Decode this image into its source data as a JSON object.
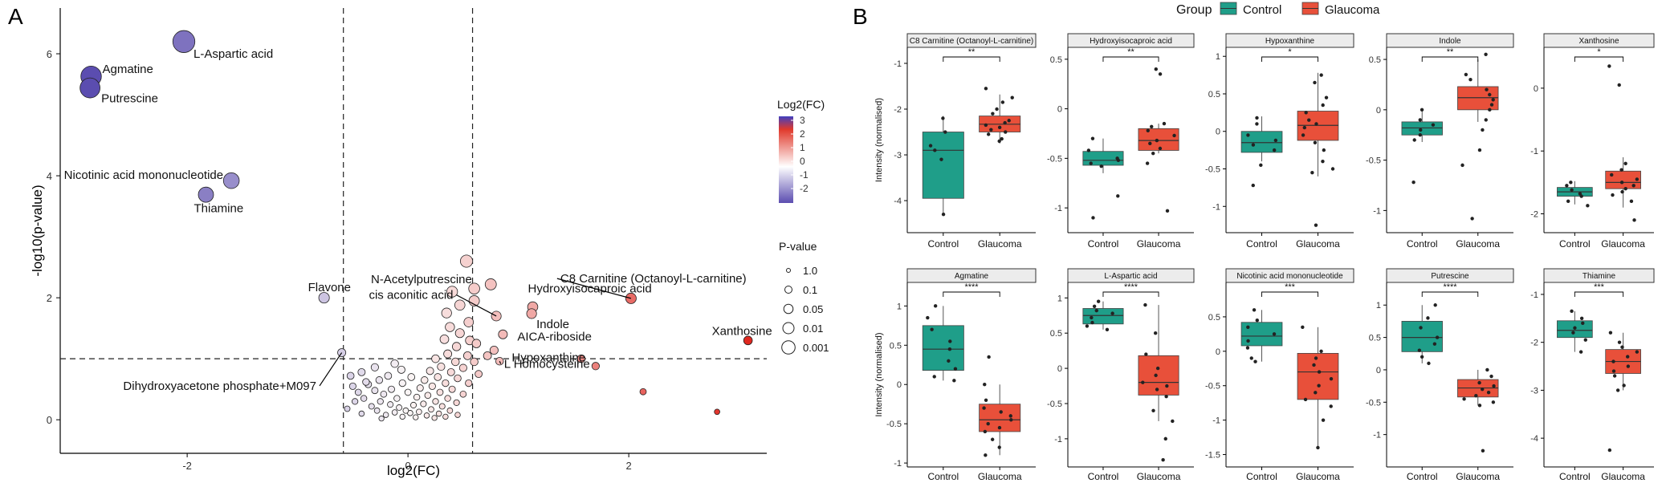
{
  "panel_labels": {
    "a": "A",
    "b": "B"
  },
  "volcano": {
    "chart_data": {
      "type": "scatter",
      "xlabel": "log2(FC)",
      "ylabel": "-log10(p-value)",
      "xlim": [
        -3.15,
        3.25
      ],
      "ylim": [
        -0.55,
        6.75
      ],
      "xticks": [
        -2,
        0,
        2
      ],
      "yticks": [
        0,
        2,
        4,
        6
      ],
      "vlines": [
        -0.585,
        0.585
      ],
      "hline": 1.0,
      "color_legend": {
        "title": "Log2(FC)",
        "ticks": [
          "3",
          "2",
          "1",
          "0",
          "-1",
          "-2"
        ]
      },
      "size_legend": {
        "title": "P-value",
        "labels": [
          "1.0",
          "0.1",
          "0.05",
          "0.01",
          "0.001"
        ]
      },
      "labeled_points": [
        {
          "name": "L-Aspartic acid",
          "x": -2.03,
          "y": 6.2
        },
        {
          "name": "Agmatine",
          "x": -2.87,
          "y": 5.63
        },
        {
          "name": "Putrescine",
          "x": -2.88,
          "y": 5.44
        },
        {
          "name": "Nicotinic acid mononucleotide",
          "x": -1.6,
          "y": 3.92
        },
        {
          "name": "Thiamine",
          "x": -1.83,
          "y": 3.69
        },
        {
          "name": "Flavone",
          "x": -0.76,
          "y": 2.0
        },
        {
          "name": "Dihydroxyacetone phosphate+M097",
          "x": -0.6,
          "y": 1.1
        },
        {
          "name": "N-Acetylputrescine",
          "x": 0.6,
          "y": 1.95
        },
        {
          "name": "cis aconitic acid",
          "x": 0.8,
          "y": 1.7
        },
        {
          "name": "Hydroxyisocaproic acid",
          "x": 1.13,
          "y": 1.85
        },
        {
          "name": "C8 Carnitine (Octanoyl-L-carnitine)",
          "x": 2.02,
          "y": 1.99
        },
        {
          "name": "Indole",
          "x": 1.12,
          "y": 1.74
        },
        {
          "name": "AICA-riboside",
          "x": 0.86,
          "y": 1.4
        },
        {
          "name": "Hypoxanthine",
          "x": 0.78,
          "y": 1.14
        },
        {
          "name": "L Homocysteine",
          "x": 0.83,
          "y": 0.96
        },
        {
          "name": "Xanthosine",
          "x": 3.08,
          "y": 1.3
        }
      ],
      "other_points": [
        {
          "x": 2.13,
          "y": 0.46
        },
        {
          "x": 2.8,
          "y": 0.13
        },
        {
          "x": 1.7,
          "y": 0.88
        },
        {
          "x": 1.57,
          "y": 1.0
        },
        {
          "x": 0.75,
          "y": 2.22
        },
        {
          "x": 0.53,
          "y": 2.6
        },
        {
          "x": 0.6,
          "y": 2.15
        },
        {
          "x": 0.4,
          "y": 2.1
        },
        {
          "x": 0.47,
          "y": 1.88
        },
        {
          "x": 0.35,
          "y": 1.75
        },
        {
          "x": 0.55,
          "y": 1.6
        },
        {
          "x": 0.38,
          "y": 1.52
        },
        {
          "x": 0.47,
          "y": 1.42
        },
        {
          "x": 0.33,
          "y": 1.32
        },
        {
          "x": 0.56,
          "y": 1.3
        },
        {
          "x": 0.44,
          "y": 1.2
        },
        {
          "x": 0.62,
          "y": 1.25
        },
        {
          "x": 0.72,
          "y": 1.05
        },
        {
          "x": 0.36,
          "y": 1.08
        },
        {
          "x": 0.54,
          "y": 1.05
        },
        {
          "x": 0.25,
          "y": 1.0
        },
        {
          "x": 0.43,
          "y": 0.95
        },
        {
          "x": 0.6,
          "y": 0.95
        },
        {
          "x": 0.3,
          "y": 0.87
        },
        {
          "x": 0.5,
          "y": 0.85
        },
        {
          "x": 0.2,
          "y": 0.8
        },
        {
          "x": 0.39,
          "y": 0.78
        },
        {
          "x": 0.64,
          "y": 0.75
        },
        {
          "x": 0.27,
          "y": 0.7
        },
        {
          "x": 0.45,
          "y": 0.68
        },
        {
          "x": 0.15,
          "y": 0.65
        },
        {
          "x": 0.34,
          "y": 0.6
        },
        {
          "x": 0.55,
          "y": 0.6
        },
        {
          "x": 0.22,
          "y": 0.55
        },
        {
          "x": 0.4,
          "y": 0.5
        },
        {
          "x": 0.11,
          "y": 0.52
        },
        {
          "x": 0.29,
          "y": 0.45
        },
        {
          "x": 0.5,
          "y": 0.42
        },
        {
          "x": 0.18,
          "y": 0.4
        },
        {
          "x": 0.36,
          "y": 0.35
        },
        {
          "x": 0.08,
          "y": 0.37
        },
        {
          "x": 0.25,
          "y": 0.3
        },
        {
          "x": 0.44,
          "y": 0.28
        },
        {
          "x": 0.14,
          "y": 0.26
        },
        {
          "x": 0.31,
          "y": 0.22
        },
        {
          "x": 0.05,
          "y": 0.24
        },
        {
          "x": 0.21,
          "y": 0.17
        },
        {
          "x": 0.38,
          "y": 0.15
        },
        {
          "x": 0.1,
          "y": 0.13
        },
        {
          "x": 0.28,
          "y": 0.1
        },
        {
          "x": 0.02,
          "y": 0.11
        },
        {
          "x": 0.17,
          "y": 0.07
        },
        {
          "x": 0.34,
          "y": 0.05
        },
        {
          "x": 0.07,
          "y": 0.04
        },
        {
          "x": 0.24,
          "y": 0.03
        },
        {
          "x": 0.45,
          "y": 0.08
        },
        {
          "x": -0.05,
          "y": 0.05
        },
        {
          "x": -0.12,
          "y": 0.12
        },
        {
          "x": -0.2,
          "y": 0.08
        },
        {
          "x": -0.28,
          "y": 0.15
        },
        {
          "x": -0.08,
          "y": 0.2
        },
        {
          "x": -0.16,
          "y": 0.25
        },
        {
          "x": -0.25,
          "y": 0.3
        },
        {
          "x": -0.33,
          "y": 0.22
        },
        {
          "x": -0.4,
          "y": 0.35
        },
        {
          "x": -0.1,
          "y": 0.35
        },
        {
          "x": -0.22,
          "y": 0.42
        },
        {
          "x": -0.3,
          "y": 0.48
        },
        {
          "x": -0.45,
          "y": 0.45
        },
        {
          "x": -0.15,
          "y": 0.5
        },
        {
          "x": -0.36,
          "y": 0.58
        },
        {
          "x": -0.05,
          "y": 0.6
        },
        {
          "x": -0.26,
          "y": 0.65
        },
        {
          "x": -0.5,
          "y": 0.55
        },
        {
          "x": -0.18,
          "y": 0.72
        },
        {
          "x": -0.42,
          "y": 0.78
        },
        {
          "x": -0.06,
          "y": 0.82
        },
        {
          "x": -0.3,
          "y": 0.86
        },
        {
          "x": -0.52,
          "y": 0.72
        },
        {
          "x": -0.12,
          "y": 0.92
        },
        {
          "x": -0.38,
          "y": 0.62
        },
        {
          "x": -0.48,
          "y": 0.3
        },
        {
          "x": -0.55,
          "y": 0.18
        },
        {
          "x": -0.42,
          "y": 0.1
        },
        {
          "x": -0.02,
          "y": 0.15
        },
        {
          "x": 0.0,
          "y": 0.45
        },
        {
          "x": 0.03,
          "y": 0.7
        },
        {
          "x": -0.24,
          "y": 0.02
        }
      ]
    }
  },
  "boxplots": {
    "legend": {
      "title": "Group",
      "items": [
        "Control",
        "Glaucoma"
      ],
      "colors": [
        "#1f9e89",
        "#e8503a"
      ]
    },
    "ylabel": "Intensity (normalised)",
    "chart_data": [
      {
        "type": "box",
        "title": "C8 Carnitine (Octanoyl-L-carnitine)",
        "signif": "**",
        "categories": [
          "Control",
          "Glaucoma"
        ],
        "ylim": [
          -4.7,
          -0.65
        ],
        "yticks": [
          -1,
          -2,
          -3,
          -4
        ],
        "box": [
          [
            -3.95,
            -2.9,
            -2.5,
            -4.3,
            -2.15
          ],
          [
            -2.5,
            -2.33,
            -2.15,
            -2.75,
            -1.68
          ]
        ],
        "points": [
          [
            -2.2,
            -2.5,
            -2.8,
            -2.9,
            -3.1,
            -4.3
          ],
          [
            -1.55,
            -1.75,
            -1.85,
            -2.0,
            -2.1,
            -2.25,
            -2.3,
            -2.35,
            -2.4,
            -2.45,
            -2.5,
            -2.55,
            -2.65,
            -2.7
          ]
        ]
      },
      {
        "type": "box",
        "title": "Hydroxyisocaproic acid",
        "signif": "**",
        "categories": [
          "Control",
          "Glaucoma"
        ],
        "ylim": [
          -1.25,
          0.62
        ],
        "yticks": [
          0.5,
          0,
          -0.5,
          -1
        ],
        "box": [
          [
            -0.57,
            -0.52,
            -0.43,
            -0.65,
            -0.3
          ],
          [
            -0.42,
            -0.32,
            -0.2,
            -0.45,
            -0.15
          ]
        ],
        "points": [
          [
            -0.3,
            -0.42,
            -0.5,
            -0.52,
            -0.55,
            -0.58,
            -0.88,
            -1.1
          ],
          [
            0.4,
            0.35,
            -0.15,
            -0.18,
            -0.22,
            -0.27,
            -0.32,
            -0.35,
            -0.4,
            -0.45,
            -0.55,
            -1.03
          ]
        ]
      },
      {
        "type": "box",
        "title": "Hypoxanthine",
        "signif": "*",
        "categories": [
          "Control",
          "Glaucoma"
        ],
        "ylim": [
          -1.35,
          1.12
        ],
        "yticks": [
          1,
          0.5,
          0,
          -0.5,
          -1
        ],
        "box": [
          [
            -0.28,
            -0.15,
            0.0,
            -0.4,
            0.2
          ],
          [
            -0.12,
            0.08,
            0.27,
            -0.6,
            0.78
          ]
        ],
        "points": [
          [
            0.18,
            0.1,
            -0.05,
            -0.12,
            -0.18,
            -0.25,
            -0.45,
            -0.72
          ],
          [
            0.75,
            0.65,
            0.45,
            0.35,
            0.25,
            0.15,
            0.1,
            0.05,
            -0.05,
            -0.15,
            -0.25,
            -0.4,
            -0.5,
            -0.55,
            -1.25
          ]
        ]
      },
      {
        "type": "box",
        "title": "Indole",
        "signif": "**",
        "categories": [
          "Control",
          "Glaucoma"
        ],
        "ylim": [
          -1.22,
          0.62
        ],
        "yticks": [
          0.5,
          0,
          -0.5,
          -1
        ],
        "box": [
          [
            -0.25,
            -0.18,
            -0.12,
            -0.32,
            0.0
          ],
          [
            0.0,
            0.12,
            0.23,
            -0.12,
            0.5
          ]
        ],
        "points": [
          [
            0.0,
            -0.1,
            -0.15,
            -0.2,
            -0.25,
            -0.3,
            -0.72
          ],
          [
            0.55,
            0.35,
            0.3,
            0.2,
            0.15,
            0.1,
            0.05,
            0.0,
            -0.1,
            -0.2,
            -0.4,
            -0.55,
            -1.08
          ]
        ]
      },
      {
        "type": "box",
        "title": "Xanthosine",
        "signif": "*",
        "categories": [
          "Control",
          "Glaucoma"
        ],
        "ylim": [
          -2.3,
          0.65
        ],
        "yticks": [
          0,
          -1,
          -2
        ],
        "box": [
          [
            -1.72,
            -1.65,
            -1.58,
            -1.85,
            -1.48
          ],
          [
            -1.6,
            -1.5,
            -1.32,
            -1.9,
            -1.1
          ]
        ],
        "points": [
          [
            -1.5,
            -1.55,
            -1.62,
            -1.68,
            -1.72,
            -1.8,
            -1.87
          ],
          [
            0.35,
            0.05,
            -1.2,
            -1.3,
            -1.38,
            -1.45,
            -1.5,
            -1.55,
            -1.6,
            -1.65,
            -1.7,
            -1.8,
            -2.1
          ]
        ]
      },
      {
        "type": "box",
        "title": "Agmatine",
        "signif": "****",
        "categories": [
          "Control",
          "Glaucoma"
        ],
        "ylim": [
          -1.05,
          1.3
        ],
        "yticks": [
          1,
          0.5,
          0,
          -0.5,
          -1
        ],
        "box": [
          [
            0.18,
            0.45,
            0.75,
            0.05,
            1.0
          ],
          [
            -0.6,
            -0.45,
            -0.25,
            -0.9,
            0.0
          ]
        ],
        "points": [
          [
            1.0,
            0.85,
            0.7,
            0.55,
            0.45,
            0.3,
            0.2,
            0.1,
            0.05
          ],
          [
            0.35,
            0.0,
            -0.2,
            -0.3,
            -0.35,
            -0.4,
            -0.45,
            -0.5,
            -0.55,
            -0.6,
            -0.7,
            -0.8,
            -0.9
          ]
        ]
      },
      {
        "type": "box",
        "title": "L-Aspartic acid",
        "signif": "****",
        "categories": [
          "Control",
          "Glaucoma"
        ],
        "ylim": [
          -1.4,
          1.22
        ],
        "yticks": [
          1,
          0.5,
          0,
          -0.5,
          -1
        ],
        "box": [
          [
            0.63,
            0.75,
            0.85,
            0.55,
            0.95
          ],
          [
            -0.38,
            -0.2,
            0.18,
            -0.75,
            0.9
          ]
        ],
        "points": [
          [
            0.95,
            0.88,
            0.82,
            0.78,
            0.72,
            0.65,
            0.6,
            0.55
          ],
          [
            0.9,
            0.5,
            0.2,
            0.0,
            -0.1,
            -0.2,
            -0.25,
            -0.3,
            -0.4,
            -0.6,
            -0.75,
            -1.0,
            -1.3
          ]
        ]
      },
      {
        "type": "box",
        "title": "Nicotinic acid mononucleotide",
        "signif": "***",
        "categories": [
          "Control",
          "Glaucoma"
        ],
        "ylim": [
          -1.68,
          1.0
        ],
        "yticks": [
          0.5,
          0,
          -0.5,
          -1,
          -1.5
        ],
        "box": [
          [
            0.08,
            0.22,
            0.42,
            -0.15,
            0.6
          ],
          [
            -0.7,
            -0.3,
            -0.03,
            -1.4,
            0.35
          ]
        ],
        "points": [
          [
            0.6,
            0.45,
            0.35,
            0.25,
            0.15,
            0.05,
            -0.1,
            -0.15
          ],
          [
            0.35,
            0.0,
            -0.1,
            -0.2,
            -0.3,
            -0.4,
            -0.5,
            -0.6,
            -0.7,
            -0.8,
            -1.0,
            -1.4
          ]
        ]
      },
      {
        "type": "box",
        "title": "Putrescine",
        "signif": "****",
        "categories": [
          "Control",
          "Glaucoma"
        ],
        "ylim": [
          -1.5,
          1.35
        ],
        "yticks": [
          1,
          0.5,
          0,
          -0.5,
          -1
        ],
        "box": [
          [
            0.28,
            0.5,
            0.75,
            0.1,
            1.0
          ],
          [
            -0.42,
            -0.28,
            -0.15,
            -0.55,
            0.0
          ]
        ],
        "points": [
          [
            1.0,
            0.8,
            0.65,
            0.5,
            0.4,
            0.3,
            0.2,
            0.1
          ],
          [
            0.0,
            -0.1,
            -0.2,
            -0.25,
            -0.3,
            -0.35,
            -0.4,
            -0.45,
            -0.5,
            -0.55,
            -1.25
          ]
        ]
      },
      {
        "type": "box",
        "title": "Thiamine",
        "signif": "***",
        "categories": [
          "Control",
          "Glaucoma"
        ],
        "ylim": [
          -4.6,
          -0.75
        ],
        "yticks": [
          -1,
          -2,
          -3,
          -4
        ],
        "box": [
          [
            -1.9,
            -1.75,
            -1.55,
            -2.2,
            -1.35
          ],
          [
            -2.65,
            -2.4,
            -2.15,
            -3.0,
            -1.8
          ]
        ],
        "points": [
          [
            -1.35,
            -1.5,
            -1.6,
            -1.7,
            -1.8,
            -1.95,
            -2.2
          ],
          [
            -1.8,
            -2.0,
            -2.1,
            -2.2,
            -2.3,
            -2.4,
            -2.5,
            -2.6,
            -2.7,
            -2.9,
            -3.0,
            -4.25
          ]
        ]
      }
    ]
  }
}
